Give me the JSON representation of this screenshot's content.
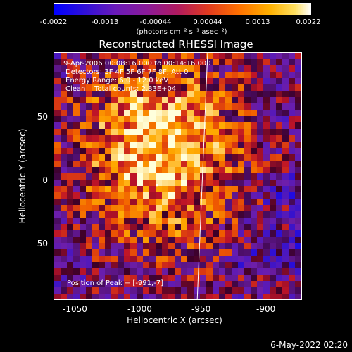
{
  "colorbar": {
    "ticks": [
      "-0.0022",
      "-0.0013",
      "-0.00044",
      "0.00044",
      "0.0013",
      "0.0022"
    ],
    "units": "(photons cm⁻² s⁻¹ asec⁻²)"
  },
  "chart_data": {
    "type": "heatmap",
    "title": "Reconstructed RHESSI Image",
    "xlabel": "Heliocentric X (arcsec)",
    "ylabel": "Heliocentric Y (arcsec)",
    "xlim": [
      -1070,
      -880
    ],
    "ylim": [
      -95,
      95
    ],
    "xticks": [
      "-1050",
      "-1000",
      "-950",
      "-900"
    ],
    "yticks": [
      "50",
      "0",
      "-50"
    ],
    "xtick_values": [
      -1050,
      -1000,
      -950,
      -900
    ],
    "ytick_values": [
      50,
      0,
      -50
    ],
    "colorbar_range": [
      -0.0022,
      0.0022
    ],
    "peak": [
      -991,
      -7
    ],
    "annotations": [
      " 9-Apr-2006 00:08:16.000 to 00:14:16.000",
      "Detectors: 3F 4F 5F 6F 7F 8F, Att 0",
      "Energy Range: 6.0 - 12.0 keV",
      "Clean    Total counts: 2.83E+04"
    ],
    "peak_label": "Position of Peak = [-991,-7]"
  },
  "timestamp": "6-May-2022 02:20"
}
